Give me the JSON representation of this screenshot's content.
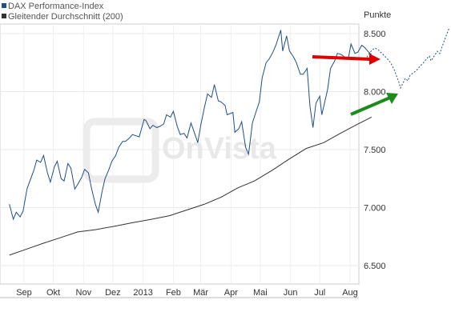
{
  "chart_data": {
    "type": "line",
    "legend": [
      {
        "name": "DAX Performance-Index",
        "color": "#1f4e89"
      },
      {
        "name": "Gleitender Durchschnitt (200)",
        "color": "#333333"
      }
    ],
    "y_unit": "Punkte",
    "ylim": [
      6400,
      8600
    ],
    "y_ticks": [
      6500,
      7000,
      7500,
      8000,
      8500
    ],
    "y_tick_labels": [
      "6.500",
      "7.000",
      "7.500",
      "8.000",
      "8.500"
    ],
    "x_range": [
      "2012-08-17",
      "2013-08-23"
    ],
    "x_ticks": [
      {
        "label": "Sep",
        "date": "2012-09-01"
      },
      {
        "label": "Okt",
        "date": "2012-10-01"
      },
      {
        "label": "Nov",
        "date": "2012-11-01"
      },
      {
        "label": "Dez",
        "date": "2012-12-01"
      },
      {
        "label": "2013",
        "date": "2013-01-01"
      },
      {
        "label": "Feb",
        "date": "2013-02-01"
      },
      {
        "label": "Mär",
        "date": "2013-03-01"
      },
      {
        "label": "Apr",
        "date": "2013-04-01"
      },
      {
        "label": "Mai",
        "date": "2013-05-01"
      },
      {
        "label": "Jun",
        "date": "2013-06-01"
      },
      {
        "label": "Jul",
        "date": "2013-07-01"
      },
      {
        "label": "Aug",
        "date": "2013-08-01"
      }
    ],
    "series": [
      {
        "name": "DAX Performance-Index",
        "color": "#1f4e89",
        "points": [
          [
            "2012-08-17",
            7030
          ],
          [
            "2012-08-21",
            6900
          ],
          [
            "2012-08-24",
            6960
          ],
          [
            "2012-08-28",
            6920
          ],
          [
            "2012-08-31",
            6970
          ],
          [
            "2012-09-04",
            7160
          ],
          [
            "2012-09-07",
            7230
          ],
          [
            "2012-09-11",
            7320
          ],
          [
            "2012-09-14",
            7410
          ],
          [
            "2012-09-18",
            7390
          ],
          [
            "2012-09-21",
            7450
          ],
          [
            "2012-09-25",
            7300
          ],
          [
            "2012-09-28",
            7220
          ],
          [
            "2012-10-02",
            7350
          ],
          [
            "2012-10-05",
            7400
          ],
          [
            "2012-10-09",
            7250
          ],
          [
            "2012-10-12",
            7230
          ],
          [
            "2012-10-16",
            7380
          ],
          [
            "2012-10-19",
            7340
          ],
          [
            "2012-10-23",
            7160
          ],
          [
            "2012-10-26",
            7200
          ],
          [
            "2012-10-30",
            7260
          ],
          [
            "2012-11-02",
            7330
          ],
          [
            "2012-11-06",
            7300
          ],
          [
            "2012-11-09",
            7170
          ],
          [
            "2012-11-13",
            7030
          ],
          [
            "2012-11-16",
            6960
          ],
          [
            "2012-11-20",
            7140
          ],
          [
            "2012-11-23",
            7250
          ],
          [
            "2012-11-27",
            7330
          ],
          [
            "2012-11-30",
            7400
          ],
          [
            "2012-12-04",
            7450
          ],
          [
            "2012-12-07",
            7520
          ],
          [
            "2012-12-11",
            7570
          ],
          [
            "2012-12-14",
            7570
          ],
          [
            "2012-12-18",
            7600
          ],
          [
            "2012-12-21",
            7630
          ],
          [
            "2012-12-28",
            7610
          ],
          [
            "2013-01-02",
            7760
          ],
          [
            "2013-01-04",
            7750
          ],
          [
            "2013-01-08",
            7680
          ],
          [
            "2013-01-11",
            7710
          ],
          [
            "2013-01-15",
            7690
          ],
          [
            "2013-01-18",
            7700
          ],
          [
            "2013-01-22",
            7720
          ],
          [
            "2013-01-25",
            7800
          ],
          [
            "2013-01-29",
            7780
          ],
          [
            "2013-02-01",
            7830
          ],
          [
            "2013-02-05",
            7700
          ],
          [
            "2013-02-08",
            7630
          ],
          [
            "2013-02-12",
            7640
          ],
          [
            "2013-02-15",
            7600
          ],
          [
            "2013-02-19",
            7730
          ],
          [
            "2013-02-22",
            7660
          ],
          [
            "2013-02-26",
            7560
          ],
          [
            "2013-03-01",
            7710
          ],
          [
            "2013-03-05",
            7870
          ],
          [
            "2013-03-08",
            7980
          ],
          [
            "2013-03-12",
            7950
          ],
          [
            "2013-03-15",
            8060
          ],
          [
            "2013-03-19",
            7920
          ],
          [
            "2013-03-22",
            7910
          ],
          [
            "2013-03-26",
            7880
          ],
          [
            "2013-03-28",
            7800
          ],
          [
            "2013-04-03",
            7820
          ],
          [
            "2013-04-05",
            7650
          ],
          [
            "2013-04-09",
            7680
          ],
          [
            "2013-04-12",
            7740
          ],
          [
            "2013-04-16",
            7520
          ],
          [
            "2013-04-19",
            7460
          ],
          [
            "2013-04-23",
            7730
          ],
          [
            "2013-04-26",
            7810
          ],
          [
            "2013-04-30",
            7910
          ],
          [
            "2013-05-03",
            8120
          ],
          [
            "2013-05-07",
            8250
          ],
          [
            "2013-05-10",
            8280
          ],
          [
            "2013-05-14",
            8340
          ],
          [
            "2013-05-17",
            8400
          ],
          [
            "2013-05-22",
            8530
          ],
          [
            "2013-05-24",
            8350
          ],
          [
            "2013-05-28",
            8480
          ],
          [
            "2013-05-31",
            8350
          ],
          [
            "2013-06-04",
            8300
          ],
          [
            "2013-06-07",
            8250
          ],
          [
            "2013-06-11",
            8150
          ],
          [
            "2013-06-14",
            8150
          ],
          [
            "2013-06-18",
            8200
          ],
          [
            "2013-06-21",
            7870
          ],
          [
            "2013-06-24",
            7690
          ],
          [
            "2013-06-27",
            7900
          ],
          [
            "2013-07-01",
            7960
          ],
          [
            "2013-07-03",
            7800
          ],
          [
            "2013-07-05",
            7870
          ],
          [
            "2013-07-09",
            8020
          ],
          [
            "2013-07-12",
            8200
          ],
          [
            "2013-07-16",
            8260
          ],
          [
            "2013-07-19",
            8330
          ],
          [
            "2013-07-23",
            8320
          ],
          [
            "2013-07-26",
            8300
          ],
          [
            "2013-07-30",
            8280
          ],
          [
            "2013-08-02",
            8410
          ],
          [
            "2013-08-06",
            8330
          ],
          [
            "2013-08-09",
            8340
          ],
          [
            "2013-08-13",
            8400
          ],
          [
            "2013-08-16",
            8380
          ],
          [
            "2013-08-20",
            8340
          ],
          [
            "2013-08-23",
            8320
          ]
        ]
      },
      {
        "name": "Gleitender Durchschnitt (200)",
        "color": "#333333",
        "points": [
          [
            "2012-08-17",
            6590
          ],
          [
            "2012-09-03",
            6640
          ],
          [
            "2012-09-20",
            6690
          ],
          [
            "2012-10-08",
            6740
          ],
          [
            "2012-10-26",
            6790
          ],
          [
            "2012-11-13",
            6810
          ],
          [
            "2012-12-03",
            6840
          ],
          [
            "2012-12-21",
            6870
          ],
          [
            "2013-01-10",
            6900
          ],
          [
            "2013-01-28",
            6930
          ],
          [
            "2013-02-15",
            6980
          ],
          [
            "2013-03-05",
            7030
          ],
          [
            "2013-03-22",
            7090
          ],
          [
            "2013-04-08",
            7170
          ],
          [
            "2013-04-25",
            7230
          ],
          [
            "2013-05-13",
            7320
          ],
          [
            "2013-05-31",
            7420
          ],
          [
            "2013-06-17",
            7510
          ],
          [
            "2013-07-05",
            7560
          ],
          [
            "2013-07-22",
            7640
          ],
          [
            "2013-08-09",
            7720
          ],
          [
            "2013-08-23",
            7780
          ]
        ]
      }
    ]
  },
  "annotations": {
    "watermark": "OnVista",
    "red_arrow_color": "#e00000",
    "green_arrow_color": "#1c8c1c",
    "projection_color": "#1f4e89"
  }
}
